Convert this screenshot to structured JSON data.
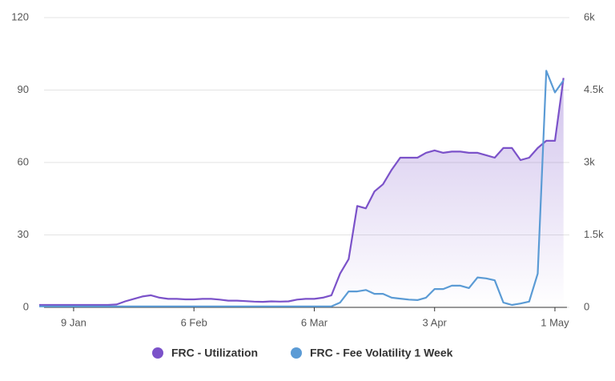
{
  "chart_data": {
    "type": "line",
    "categories": [
      "1 Jan",
      "3 Jan",
      "5 Jan",
      "7 Jan",
      "9 Jan",
      "11 Jan",
      "13 Jan",
      "15 Jan",
      "17 Jan",
      "19 Jan",
      "21 Jan",
      "23 Jan",
      "25 Jan",
      "27 Jan",
      "29 Jan",
      "31 Jan",
      "2 Feb",
      "4 Feb",
      "6 Feb",
      "8 Feb",
      "10 Feb",
      "12 Feb",
      "14 Feb",
      "16 Feb",
      "18 Feb",
      "20 Feb",
      "22 Feb",
      "24 Feb",
      "26 Feb",
      "28 Feb",
      "2 Mar",
      "4 Mar",
      "6 Mar",
      "8 Mar",
      "10 Mar",
      "12 Mar",
      "14 Mar",
      "16 Mar",
      "18 Mar",
      "20 Mar",
      "22 Mar",
      "24 Mar",
      "26 Mar",
      "28 Mar",
      "30 Mar",
      "1 Apr",
      "3 Apr",
      "5 Apr",
      "7 Apr",
      "9 Apr",
      "11 Apr",
      "13 Apr",
      "15 Apr",
      "17 Apr",
      "19 Apr",
      "21 Apr",
      "23 Apr",
      "25 Apr",
      "27 Apr",
      "29 Apr",
      "1 May",
      "3 May"
    ],
    "series": [
      {
        "name": "FRC - Utilization",
        "color": "#7b52c9",
        "axis": "y",
        "values": [
          1,
          1,
          1,
          1,
          1,
          1,
          1,
          1,
          1,
          1.2,
          2.5,
          3.5,
          4.5,
          5,
          4,
          3.5,
          3.5,
          3.3,
          3.3,
          3.5,
          3.5,
          3.2,
          2.8,
          2.8,
          2.6,
          2.4,
          2.3,
          2.5,
          2.4,
          2.5,
          3.2,
          3.5,
          3.5,
          4,
          5,
          14,
          20,
          42,
          41,
          48,
          51,
          57,
          62,
          62,
          62,
          64,
          65,
          64,
          64.5,
          64.5,
          64,
          64,
          63,
          62,
          66,
          66,
          61,
          62,
          66,
          69,
          69,
          95
        ]
      },
      {
        "name": "FRC - Fee Volatility 1 Week",
        "color": "#5b9bd5",
        "axis": "y2",
        "values": [
          20,
          20,
          20,
          20,
          20,
          20,
          20,
          20,
          20,
          20,
          20,
          20,
          20,
          20,
          20,
          20,
          20,
          20,
          20,
          20,
          20,
          20,
          20,
          20,
          20,
          20,
          20,
          20,
          20,
          20,
          20,
          20,
          20,
          20,
          20,
          100,
          330,
          330,
          360,
          280,
          280,
          200,
          180,
          160,
          150,
          200,
          380,
          380,
          450,
          450,
          400,
          620,
          600,
          560,
          100,
          50,
          80,
          120,
          700,
          4900,
          4450,
          4700
        ]
      }
    ],
    "ylim": [
      0,
      120
    ],
    "yticks": [
      0,
      30,
      60,
      90,
      120
    ],
    "y2lim": [
      0,
      6000
    ],
    "y2ticks": [
      0,
      {
        "value": 1500,
        "label": "1.5k"
      },
      {
        "value": 3000,
        "label": "3k"
      },
      {
        "value": 4500,
        "label": "4.5k"
      },
      {
        "value": 6000,
        "label": "6k"
      }
    ],
    "grid": true,
    "legend": "bottom"
  }
}
